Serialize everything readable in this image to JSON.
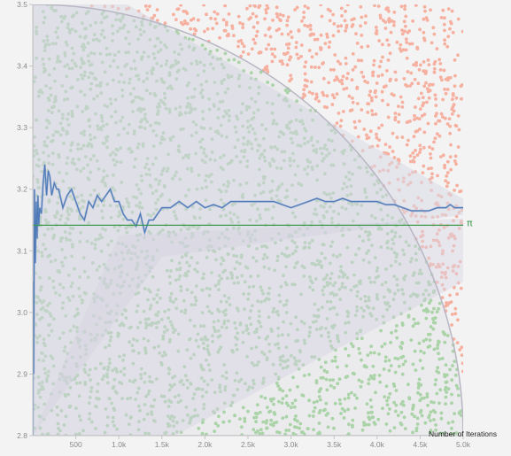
{
  "chart_data": {
    "type": "line",
    "title": "",
    "xlabel": "Number of Iterations",
    "ylabel": "",
    "xlim": [
      0,
      5000
    ],
    "ylim": [
      2.8,
      3.5
    ],
    "x_ticks": [
      {
        "value": 500,
        "label": "500"
      },
      {
        "value": 1000,
        "label": "1.0k"
      },
      {
        "value": 1500,
        "label": "1.5k"
      },
      {
        "value": 2000,
        "label": "2.0k"
      },
      {
        "value": 2500,
        "label": "2.5k"
      },
      {
        "value": 3000,
        "label": "3.0k"
      },
      {
        "value": 3500,
        "label": "3.5k"
      },
      {
        "value": 4000,
        "label": "4.0k"
      },
      {
        "value": 4500,
        "label": "4.5k"
      },
      {
        "value": 5000,
        "label": "5.0k"
      }
    ],
    "y_ticks": [
      {
        "value": 2.8,
        "label": "2.8"
      },
      {
        "value": 2.9,
        "label": "2.9"
      },
      {
        "value": 3.0,
        "label": "3.0"
      },
      {
        "value": 3.1,
        "label": "3.1"
      },
      {
        "value": 3.2,
        "label": "3.2"
      },
      {
        "value": 3.3,
        "label": "3.3"
      },
      {
        "value": 3.4,
        "label": "3.4"
      },
      {
        "value": 3.5,
        "label": "3.5"
      }
    ],
    "reference_line": {
      "name": "π",
      "value": 3.14159
    },
    "series": [
      {
        "name": "",
        "x": [
          1,
          5,
          10,
          20,
          30,
          40,
          50,
          60,
          70,
          80,
          100,
          120,
          140,
          160,
          180,
          200,
          220,
          250,
          280,
          300,
          350,
          400,
          450,
          500,
          550,
          600,
          650,
          700,
          750,
          800,
          850,
          900,
          950,
          1000,
          1050,
          1100,
          1150,
          1200,
          1250,
          1300,
          1350,
          1400,
          1500,
          1600,
          1700,
          1800,
          1900,
          2000,
          2100,
          2200,
          2300,
          2400,
          2500,
          2600,
          2700,
          2800,
          2900,
          3000,
          3100,
          3200,
          3300,
          3400,
          3500,
          3600,
          3700,
          3800,
          3900,
          4000,
          4100,
          4200,
          4300,
          4400,
          4500,
          4600,
          4700,
          4800,
          4850,
          4900,
          4950,
          5000
        ],
        "y": [
          2.8,
          3.05,
          2.9,
          3.2,
          3.08,
          3.18,
          3.12,
          3.19,
          3.14,
          3.17,
          3.16,
          3.21,
          3.24,
          3.19,
          3.23,
          3.22,
          3.19,
          3.21,
          3.2,
          3.2,
          3.17,
          3.19,
          3.2,
          3.18,
          3.16,
          3.15,
          3.18,
          3.17,
          3.19,
          3.18,
          3.19,
          3.2,
          3.18,
          3.18,
          3.16,
          3.15,
          3.15,
          3.14,
          3.16,
          3.13,
          3.15,
          3.15,
          3.17,
          3.17,
          3.18,
          3.17,
          3.18,
          3.17,
          3.175,
          3.17,
          3.18,
          3.18,
          3.18,
          3.18,
          3.18,
          3.18,
          3.175,
          3.17,
          3.175,
          3.18,
          3.185,
          3.18,
          3.18,
          3.185,
          3.18,
          3.18,
          3.18,
          3.18,
          3.175,
          3.175,
          3.17,
          3.165,
          3.165,
          3.165,
          3.17,
          3.17,
          3.175,
          3.17,
          3.17,
          3.17
        ]
      }
    ],
    "colors": {
      "background": "#f3f3f3",
      "inside_points": "#a9d8a4",
      "outside_points": "#f6b0a0",
      "quarter_circle": "#b9b6c4",
      "estimate_band": "#d9d8e6",
      "estimate_line": "#3f6fb0",
      "estimate_line_faded": "#9db2d6",
      "pi_line": "#3e9a52",
      "axis": "#c4c4c4"
    }
  }
}
